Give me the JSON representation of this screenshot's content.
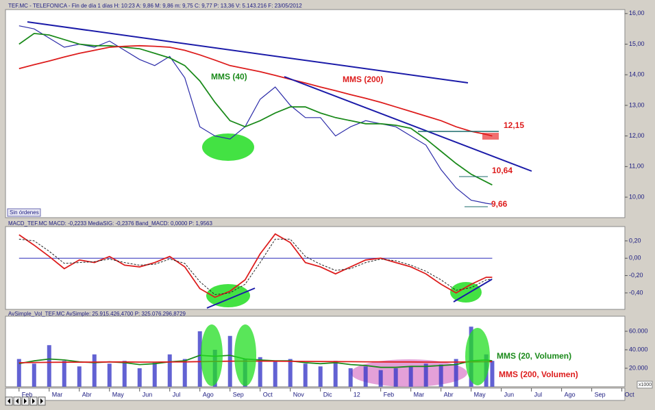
{
  "chart_data": [
    {
      "type": "line",
      "title": "TEF.MC - TELEFONICA - Fin de día 1 días H: 10:23 A: 9,86 M: 9,86 m: 9,75 C: 9,77 P: 13,36 V: 5.143.216 F: 23/05/2012",
      "button": "Sin órdenes",
      "annotations": [
        "MMS (40)",
        "MMS (200)",
        "12,15",
        "10,64",
        "9,66"
      ],
      "x": [
        0,
        0.5,
        1,
        1.5,
        2,
        2.5,
        3,
        3.5,
        4,
        4.5,
        5,
        5.5,
        6,
        6.5,
        7,
        7.5,
        8,
        8.5,
        9,
        9.5,
        10,
        10.5,
        11,
        11.5,
        12,
        12.5,
        13,
        13.5,
        14,
        14.5,
        15,
        15.5,
        15.7
      ],
      "xlim": [
        -0.45,
        20.1
      ],
      "ylim": [
        9.33,
        16.13
      ],
      "yticks": [
        {
          "value": 16,
          "label": "16,00"
        },
        {
          "value": 15,
          "label": "15,00"
        },
        {
          "value": 14,
          "label": "14,00"
        },
        {
          "value": 13,
          "label": "13,00"
        },
        {
          "value": 12,
          "label": "12,00"
        },
        {
          "value": 11,
          "label": "11,00"
        },
        {
          "value": 10,
          "label": "10,00"
        }
      ],
      "series": [
        {
          "name": "TEF.MC",
          "color": "#2a2aa8",
          "values": [
            15.6,
            15.5,
            15.2,
            14.9,
            15.0,
            14.9,
            15.1,
            14.8,
            14.5,
            14.3,
            14.6,
            13.9,
            12.3,
            12.0,
            11.9,
            12.3,
            13.2,
            13.6,
            13.0,
            12.6,
            12.6,
            12.0,
            12.3,
            12.5,
            12.4,
            12.3,
            12.0,
            11.7,
            10.9,
            10.3,
            9.9,
            9.8,
            9.77
          ]
        },
        {
          "name": "MMS (40)",
          "color": "#1a8a1a",
          "values": [
            15.0,
            15.35,
            15.3,
            15.15,
            15.0,
            14.95,
            14.95,
            14.9,
            14.85,
            14.7,
            14.55,
            14.3,
            13.8,
            13.1,
            12.5,
            12.3,
            12.5,
            12.75,
            12.95,
            12.95,
            12.75,
            12.6,
            12.5,
            12.4,
            12.4,
            12.35,
            12.25,
            11.9,
            11.5,
            11.1,
            10.75,
            10.5,
            10.4
          ]
        },
        {
          "name": "MMS (200)",
          "color": "#dd1c1c",
          "values": [
            14.2,
            14.33,
            14.45,
            14.58,
            14.7,
            14.8,
            14.9,
            14.93,
            14.95,
            14.93,
            14.9,
            14.8,
            14.65,
            14.48,
            14.3,
            14.2,
            14.1,
            13.98,
            13.85,
            13.73,
            13.6,
            13.48,
            13.35,
            13.23,
            13.1,
            12.95,
            12.8,
            12.65,
            12.5,
            12.3,
            12.15,
            12.05,
            12.0
          ]
        }
      ]
    },
    {
      "type": "line",
      "title": "MACD_TEF.MC MACD: -0,2233 MediaSIG: -0,2376 Band_MACD: 0,0000 P: 1,9563",
      "x": [
        0,
        0.5,
        1,
        1.5,
        2,
        2.5,
        3,
        3.5,
        4,
        4.5,
        5,
        5.5,
        6,
        6.5,
        7,
        7.5,
        8,
        8.5,
        9,
        9.5,
        10,
        10.5,
        11,
        11.5,
        12,
        12.5,
        13,
        13.5,
        14,
        14.5,
        15,
        15.5,
        15.7
      ],
      "xlim": [
        -0.45,
        20.1
      ],
      "ylim": [
        -0.59,
        0.365
      ],
      "yticks": [
        {
          "value": 0.2,
          "label": "0,20"
        },
        {
          "value": 0,
          "label": "0,00"
        },
        {
          "value": -0.2,
          "label": "-0,20"
        },
        {
          "value": -0.4,
          "label": "-0,40"
        }
      ],
      "series": [
        {
          "name": "MACD",
          "color": "#dd1c1c",
          "values": [
            0.27,
            0.15,
            0.02,
            -0.12,
            -0.02,
            -0.05,
            0.02,
            -0.08,
            -0.1,
            -0.05,
            0.02,
            -0.1,
            -0.35,
            -0.45,
            -0.38,
            -0.25,
            0.05,
            0.28,
            0.18,
            -0.05,
            -0.1,
            -0.18,
            -0.1,
            -0.02,
            0.0,
            -0.05,
            -0.1,
            -0.18,
            -0.3,
            -0.4,
            -0.3,
            -0.22,
            -0.22
          ]
        },
        {
          "name": "MediaSIG",
          "color": "#222222",
          "dashed": true,
          "values": [
            0.22,
            0.2,
            0.08,
            -0.06,
            -0.05,
            -0.04,
            -0.01,
            -0.05,
            -0.08,
            -0.07,
            -0.01,
            -0.06,
            -0.27,
            -0.42,
            -0.4,
            -0.3,
            -0.05,
            0.22,
            0.22,
            0.02,
            -0.07,
            -0.14,
            -0.12,
            -0.05,
            -0.01,
            -0.03,
            -0.08,
            -0.15,
            -0.25,
            -0.37,
            -0.34,
            -0.25,
            -0.24
          ]
        }
      ]
    },
    {
      "type": "line",
      "title": "AvSimple_Vol_TEF.MC AvSimple: 25.915.426,4700 P: 325.076.296,8729",
      "annotations": [
        "MMS (20, Volumen)",
        "MMS (200, Volumen)"
      ],
      "unit_label": "x1000",
      "x": [
        0,
        0.5,
        1,
        1.5,
        2,
        2.5,
        3,
        3.5,
        4,
        4.5,
        5,
        5.5,
        6,
        6.5,
        7,
        7.5,
        8,
        8.5,
        9,
        9.5,
        10,
        10.5,
        11,
        11.5,
        12,
        12.5,
        13,
        13.5,
        14,
        14.5,
        15,
        15.5,
        15.7
      ],
      "xlim": [
        -0.45,
        20.1
      ],
      "xticks": [
        {
          "value": 0,
          "label": "Feb"
        },
        {
          "value": 1,
          "label": "Mar"
        },
        {
          "value": 2,
          "label": "Abr"
        },
        {
          "value": 3,
          "label": "May"
        },
        {
          "value": 4,
          "label": "Jun"
        },
        {
          "value": 5,
          "label": "Jul"
        },
        {
          "value": 6,
          "label": "Ago"
        },
        {
          "value": 7,
          "label": "Sep"
        },
        {
          "value": 8,
          "label": "Oct"
        },
        {
          "value": 9,
          "label": "Nov"
        },
        {
          "value": 10,
          "label": "Dic"
        },
        {
          "value": 11,
          "label": "12"
        },
        {
          "value": 12,
          "label": "Feb"
        },
        {
          "value": 13,
          "label": "Mar"
        },
        {
          "value": 14,
          "label": "Abr"
        },
        {
          "value": 15,
          "label": "May"
        },
        {
          "value": 16,
          "label": "Jun"
        },
        {
          "value": 17,
          "label": "Jul"
        },
        {
          "value": 18,
          "label": "Ago"
        },
        {
          "value": 19,
          "label": "Sep"
        },
        {
          "value": 20,
          "label": "Oct"
        }
      ],
      "ylim": [
        0,
        76300
      ],
      "yticks": [
        {
          "value": 60000,
          "label": "60.000"
        },
        {
          "value": 40000,
          "label": "40.000"
        },
        {
          "value": 20000,
          "label": "20.000"
        }
      ],
      "series": [
        {
          "name": "Volumen",
          "color": "#3b3bc8",
          "type": "bar",
          "values": [
            30000,
            25000,
            45000,
            28000,
            22000,
            35000,
            25000,
            28000,
            20000,
            26000,
            35000,
            30000,
            60000,
            40000,
            55000,
            30000,
            32000,
            28000,
            30000,
            25000,
            22000,
            28000,
            20000,
            22000,
            18000,
            20000,
            22000,
            25000,
            24000,
            30000,
            65000,
            35000,
            28000
          ]
        },
        {
          "name": "MMS (20, Volumen)",
          "color": "#1a8a1a",
          "values": [
            25000,
            28000,
            30000,
            29000,
            27000,
            26000,
            27000,
            26000,
            24000,
            25000,
            27000,
            28000,
            34000,
            33000,
            34000,
            30000,
            29000,
            28000,
            28000,
            26000,
            25000,
            26000,
            24000,
            23000,
            21000,
            21000,
            22000,
            22000,
            23000,
            24000,
            28000,
            29000,
            28000
          ]
        },
        {
          "name": "MMS (200, Volumen)",
          "color": "#dd1c1c",
          "values": [
            26000,
            26200,
            26400,
            26500,
            26600,
            26700,
            26800,
            26800,
            26700,
            26700,
            26800,
            26900,
            27200,
            27400,
            27600,
            27700,
            27700,
            27600,
            27500,
            27400,
            27300,
            27200,
            27100,
            27000,
            26900,
            26800,
            26800,
            26700,
            26700,
            26700,
            26900,
            27100,
            27100
          ]
        }
      ]
    }
  ]
}
